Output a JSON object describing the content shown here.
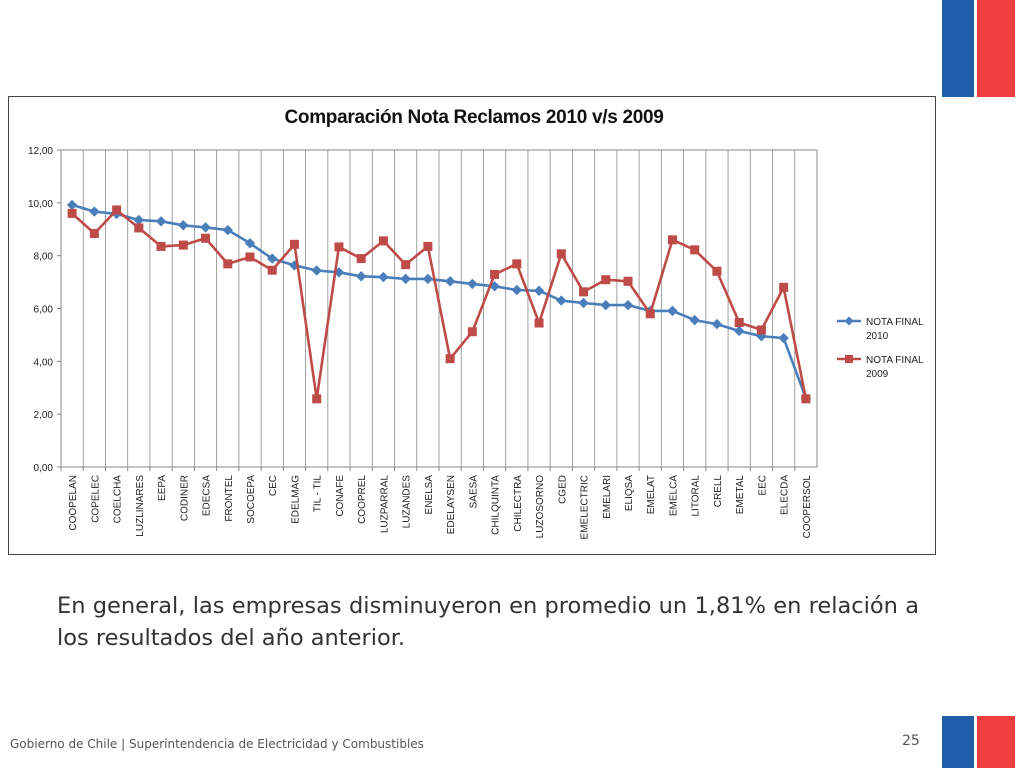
{
  "slide": {
    "caption": "En general, las empresas disminuyeron en promedio un 1,81% en relación a los resultados del año anterior.",
    "footer": "Gobierno de Chile | Superintendencia de Electricidad y Combustibles",
    "page_number": "25",
    "flag_colors": {
      "blue": "#1F5FAA",
      "red": "#EE3E3E",
      "white": "#ffffff"
    }
  },
  "chart_data": {
    "type": "line",
    "title": "Comparación Nota Reclamos 2010 v/s 2009",
    "xlabel": "",
    "ylabel": "",
    "ylim": [
      0,
      12
    ],
    "yticks": [
      "0,00",
      "2,00",
      "4,00",
      "6,00",
      "8,00",
      "10,00",
      "12,00"
    ],
    "grid": "vertical",
    "legend_position": "right",
    "categories": [
      "COOPELAN",
      "COPELEC",
      "COELCHA",
      "LUZLINARES",
      "EEPA",
      "CODINER",
      "EDECSA",
      "FRONTEL",
      "SOCOEPA",
      "CEC",
      "EDELMAG",
      "TIL - TIL",
      "CONAFE",
      "COOPREL",
      "LUZPARRAL",
      "LUZANDES",
      "ENELSA",
      "EDELAYSEN",
      "SAESA",
      "CHILQUINTA",
      "CHILECTRA",
      "LUZOSORNO",
      "CGED",
      "EMELECTRIC",
      "EMELARI",
      "ELIQSA",
      "EMELAT",
      "EMELCA",
      "LITORAL",
      "CRELL",
      "EMETAL",
      "EEC",
      "ELECDA",
      "COOPERSOL"
    ],
    "series": [
      {
        "name": "NOTA FINAL 2010",
        "legend_lines": [
          "NOTA FINAL",
          "2010"
        ],
        "color": "#4A7EBB",
        "marker": "diamond",
        "values": [
          9.92,
          9.67,
          9.58,
          9.35,
          9.3,
          9.15,
          9.07,
          8.97,
          8.47,
          7.89,
          7.63,
          7.44,
          7.37,
          7.22,
          7.19,
          7.12,
          7.12,
          7.03,
          6.93,
          6.84,
          6.7,
          6.67,
          6.3,
          6.21,
          6.13,
          6.13,
          5.91,
          5.91,
          5.56,
          5.41,
          5.15,
          4.95,
          4.88,
          2.6
        ]
      },
      {
        "name": "NOTA FINAL 2009",
        "legend_lines": [
          "NOTA FINAL",
          "2009"
        ],
        "color": "#BE4B48",
        "marker": "square",
        "values": [
          9.6,
          8.84,
          9.73,
          9.05,
          8.35,
          8.4,
          8.66,
          7.69,
          7.95,
          7.45,
          8.43,
          2.58,
          8.33,
          7.89,
          8.56,
          7.66,
          8.35,
          4.1,
          5.12,
          7.29,
          7.69,
          5.45,
          8.07,
          6.63,
          7.09,
          7.03,
          5.8,
          8.6,
          8.22,
          7.41,
          5.47,
          5.19,
          6.8,
          2.58
        ]
      }
    ]
  }
}
